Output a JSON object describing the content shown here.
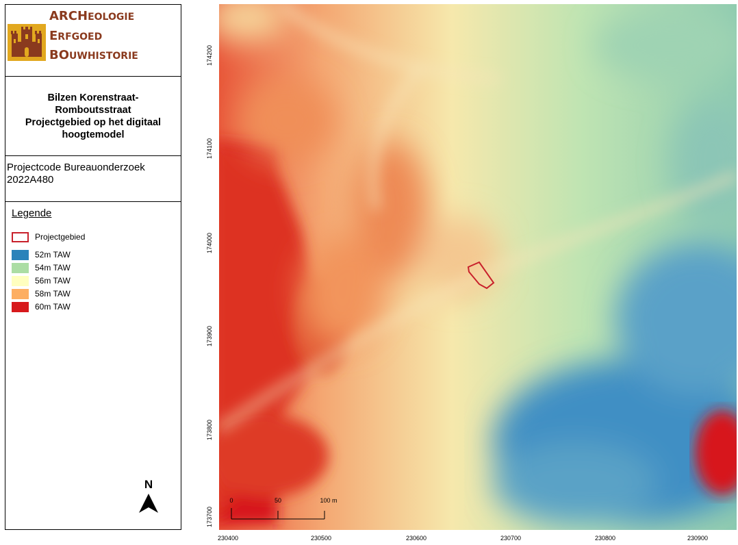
{
  "logo": {
    "line1_cap": "ARCH",
    "line1_rest": "EOLOGIE",
    "line2_cap": "E",
    "line2_rest": "RFGOED",
    "line3_cap": "BO",
    "line3_rest": "UWHISTORIE"
  },
  "title": {
    "line1": "Bilzen Korenstraat-",
    "line2": "Romboutsstraat",
    "line3": "Projectgebied op het digitaal",
    "line4": "hoogtemodel"
  },
  "project": {
    "line1": "Projectcode Bureauonderzoek",
    "line2": "2022A480"
  },
  "legend": {
    "title": "Legende",
    "items": [
      {
        "label": "Projectgebied",
        "color": "#c8202b",
        "kind": "outline"
      },
      {
        "label": "52m TAW",
        "color": "#2b83ba",
        "kind": "fill"
      },
      {
        "label": "54m TAW",
        "color": "#abdda4",
        "kind": "fill"
      },
      {
        "label": "56m TAW",
        "color": "#ffffbf",
        "kind": "fill"
      },
      {
        "label": "58m TAW",
        "color": "#fdae61",
        "kind": "fill"
      },
      {
        "label": "60m TAW",
        "color": "#d7191c",
        "kind": "fill"
      }
    ]
  },
  "north_arrow": {
    "label": "N"
  },
  "scale_bar": {
    "labels": [
      "0",
      "50",
      "100 m"
    ]
  },
  "x_ticks": [
    "230400",
    "230500",
    "230600",
    "230700",
    "230800",
    "230900"
  ],
  "y_ticks": [
    "174200",
    "174100",
    "174000",
    "173900",
    "173800",
    "173700"
  ]
}
